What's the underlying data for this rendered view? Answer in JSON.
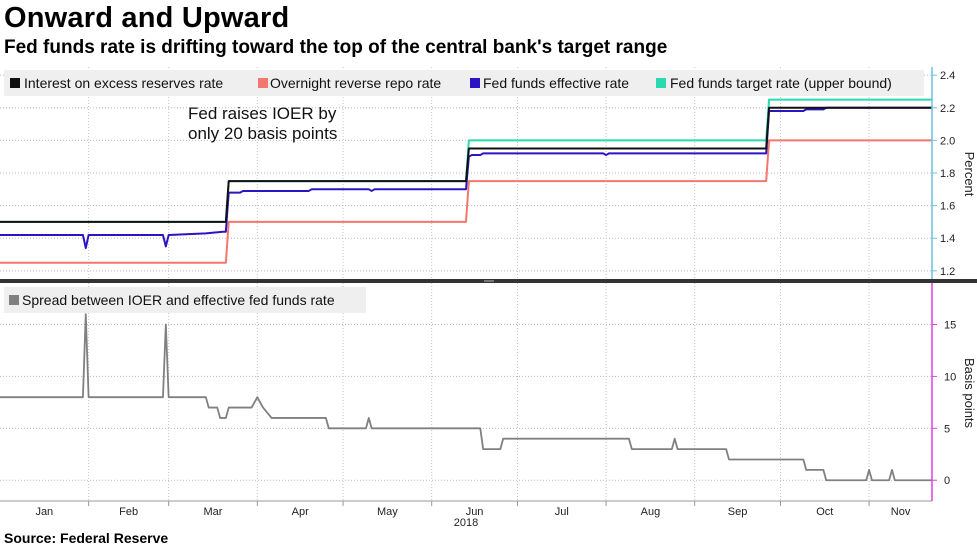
{
  "title": "Onward and Upward",
  "subtitle": "Fed funds rate is drifting toward the top of the central bank's target range",
  "source": "Source: Federal Reserve",
  "colors": {
    "ioer": "#111111",
    "rrp": "#f2776f",
    "effr": "#2b14c2",
    "target": "#29d9b0",
    "spread": "#808080",
    "right_axis_top": "#6bc2e0",
    "right_axis_bottom": "#e040e0"
  },
  "chart_data": [
    {
      "type": "line",
      "ylabel": "Percent",
      "ylim": [
        1.15,
        2.45
      ],
      "yticks": [
        1.2,
        1.4,
        1.6,
        1.8,
        2.0,
        2.2,
        2.4
      ],
      "x_range": [
        "2018-01-01",
        "2018-11-23"
      ],
      "legend_position": "top",
      "annotation": {
        "lines": [
          "Fed raises IOER by",
          "only 20 basis points"
        ],
        "x": "2018-03-09",
        "y": 2.28
      },
      "series": [
        {
          "name": "Interest on excess reserves rate",
          "color_key": "ioer",
          "points": [
            [
              "2018-01-01",
              1.5
            ],
            [
              "2018-03-21",
              1.5
            ],
            [
              "2018-03-22",
              1.75
            ],
            [
              "2018-06-13",
              1.75
            ],
            [
              "2018-06-14",
              1.95
            ],
            [
              "2018-09-26",
              1.95
            ],
            [
              "2018-09-27",
              2.2
            ],
            [
              "2018-11-23",
              2.2
            ]
          ]
        },
        {
          "name": "Overnight reverse repo rate",
          "color_key": "rrp",
          "points": [
            [
              "2018-01-01",
              1.25
            ],
            [
              "2018-03-21",
              1.25
            ],
            [
              "2018-03-22",
              1.5
            ],
            [
              "2018-06-13",
              1.5
            ],
            [
              "2018-06-14",
              1.75
            ],
            [
              "2018-09-26",
              1.75
            ],
            [
              "2018-09-27",
              2.0
            ],
            [
              "2018-11-23",
              2.0
            ]
          ]
        },
        {
          "name": "Fed funds effective rate",
          "color_key": "effr",
          "points": [
            [
              "2018-01-01",
              1.42
            ],
            [
              "2018-01-30",
              1.42
            ],
            [
              "2018-01-31",
              1.34
            ],
            [
              "2018-02-01",
              1.42
            ],
            [
              "2018-02-27",
              1.42
            ],
            [
              "2018-02-28",
              1.35
            ],
            [
              "2018-03-01",
              1.42
            ],
            [
              "2018-03-14",
              1.43
            ],
            [
              "2018-03-20",
              1.44
            ],
            [
              "2018-03-21",
              1.44
            ],
            [
              "2018-03-22",
              1.68
            ],
            [
              "2018-03-26",
              1.68
            ],
            [
              "2018-03-27",
              1.69
            ],
            [
              "2018-04-19",
              1.69
            ],
            [
              "2018-04-20",
              1.7
            ],
            [
              "2018-05-10",
              1.7
            ],
            [
              "2018-05-11",
              1.69
            ],
            [
              "2018-05-12",
              1.7
            ],
            [
              "2018-06-13",
              1.7
            ],
            [
              "2018-06-14",
              1.9
            ],
            [
              "2018-06-15",
              1.91
            ],
            [
              "2018-06-18",
              1.91
            ],
            [
              "2018-06-19",
              1.92
            ],
            [
              "2018-07-31",
              1.92
            ],
            [
              "2018-08-01",
              1.91
            ],
            [
              "2018-08-02",
              1.92
            ],
            [
              "2018-09-26",
              1.92
            ],
            [
              "2018-09-27",
              2.18
            ],
            [
              "2018-10-09",
              2.18
            ],
            [
              "2018-10-10",
              2.19
            ],
            [
              "2018-10-16",
              2.19
            ],
            [
              "2018-10-17",
              2.2
            ],
            [
              "2018-11-23",
              2.2
            ]
          ]
        },
        {
          "name": "Fed funds target rate (upper bound)",
          "color_key": "target",
          "points": [
            [
              "2018-01-01",
              1.5
            ],
            [
              "2018-03-21",
              1.5
            ],
            [
              "2018-03-22",
              1.75
            ],
            [
              "2018-06-13",
              1.75
            ],
            [
              "2018-06-14",
              2.0
            ],
            [
              "2018-09-26",
              2.0
            ],
            [
              "2018-09-27",
              2.25
            ],
            [
              "2018-11-23",
              2.25
            ]
          ]
        }
      ]
    },
    {
      "type": "line",
      "ylabel": "Basis points",
      "ylim": [
        -2,
        19
      ],
      "yticks": [
        0,
        5,
        10,
        15
      ],
      "x_range": [
        "2018-01-01",
        "2018-11-23"
      ],
      "xticks": [
        "Jan",
        "Feb",
        "Mar",
        "Apr",
        "May",
        "Jun",
        "Jul",
        "Aug",
        "Sep",
        "Oct",
        "Nov"
      ],
      "x_year_label": "2018",
      "legend_position": "top-left",
      "series": [
        {
          "name": "Spread between IOER and effective fed funds rate",
          "color_key": "spread",
          "points": [
            [
              "2018-01-01",
              8
            ],
            [
              "2018-01-30",
              8
            ],
            [
              "2018-01-31",
              16
            ],
            [
              "2018-02-01",
              8
            ],
            [
              "2018-02-27",
              8
            ],
            [
              "2018-02-28",
              15
            ],
            [
              "2018-03-01",
              8
            ],
            [
              "2018-03-14",
              8
            ],
            [
              "2018-03-15",
              7
            ],
            [
              "2018-03-18",
              7
            ],
            [
              "2018-03-19",
              6
            ],
            [
              "2018-03-21",
              6
            ],
            [
              "2018-03-22",
              7
            ],
            [
              "2018-03-30",
              7
            ],
            [
              "2018-04-01",
              8
            ],
            [
              "2018-04-03",
              7
            ],
            [
              "2018-04-06",
              6
            ],
            [
              "2018-04-25",
              6
            ],
            [
              "2018-04-26",
              5
            ],
            [
              "2018-05-09",
              5
            ],
            [
              "2018-05-10",
              6
            ],
            [
              "2018-05-11",
              5
            ],
            [
              "2018-06-18",
              5
            ],
            [
              "2018-06-19",
              3
            ],
            [
              "2018-06-25",
              3
            ],
            [
              "2018-06-26",
              4
            ],
            [
              "2018-07-31",
              4
            ],
            [
              "2018-08-01",
              4
            ],
            [
              "2018-08-09",
              4
            ],
            [
              "2018-08-10",
              3
            ],
            [
              "2018-08-24",
              3
            ],
            [
              "2018-08-25",
              4
            ],
            [
              "2018-08-26",
              3
            ],
            [
              "2018-09-12",
              3
            ],
            [
              "2018-09-13",
              2
            ],
            [
              "2018-10-09",
              2
            ],
            [
              "2018-10-10",
              1
            ],
            [
              "2018-10-16",
              1
            ],
            [
              "2018-10-17",
              0
            ],
            [
              "2018-10-31",
              0
            ],
            [
              "2018-11-01",
              1
            ],
            [
              "2018-11-02",
              0
            ],
            [
              "2018-11-08",
              0
            ],
            [
              "2018-11-09",
              1
            ],
            [
              "2018-11-10",
              0
            ],
            [
              "2018-11-23",
              0
            ]
          ]
        }
      ]
    }
  ]
}
